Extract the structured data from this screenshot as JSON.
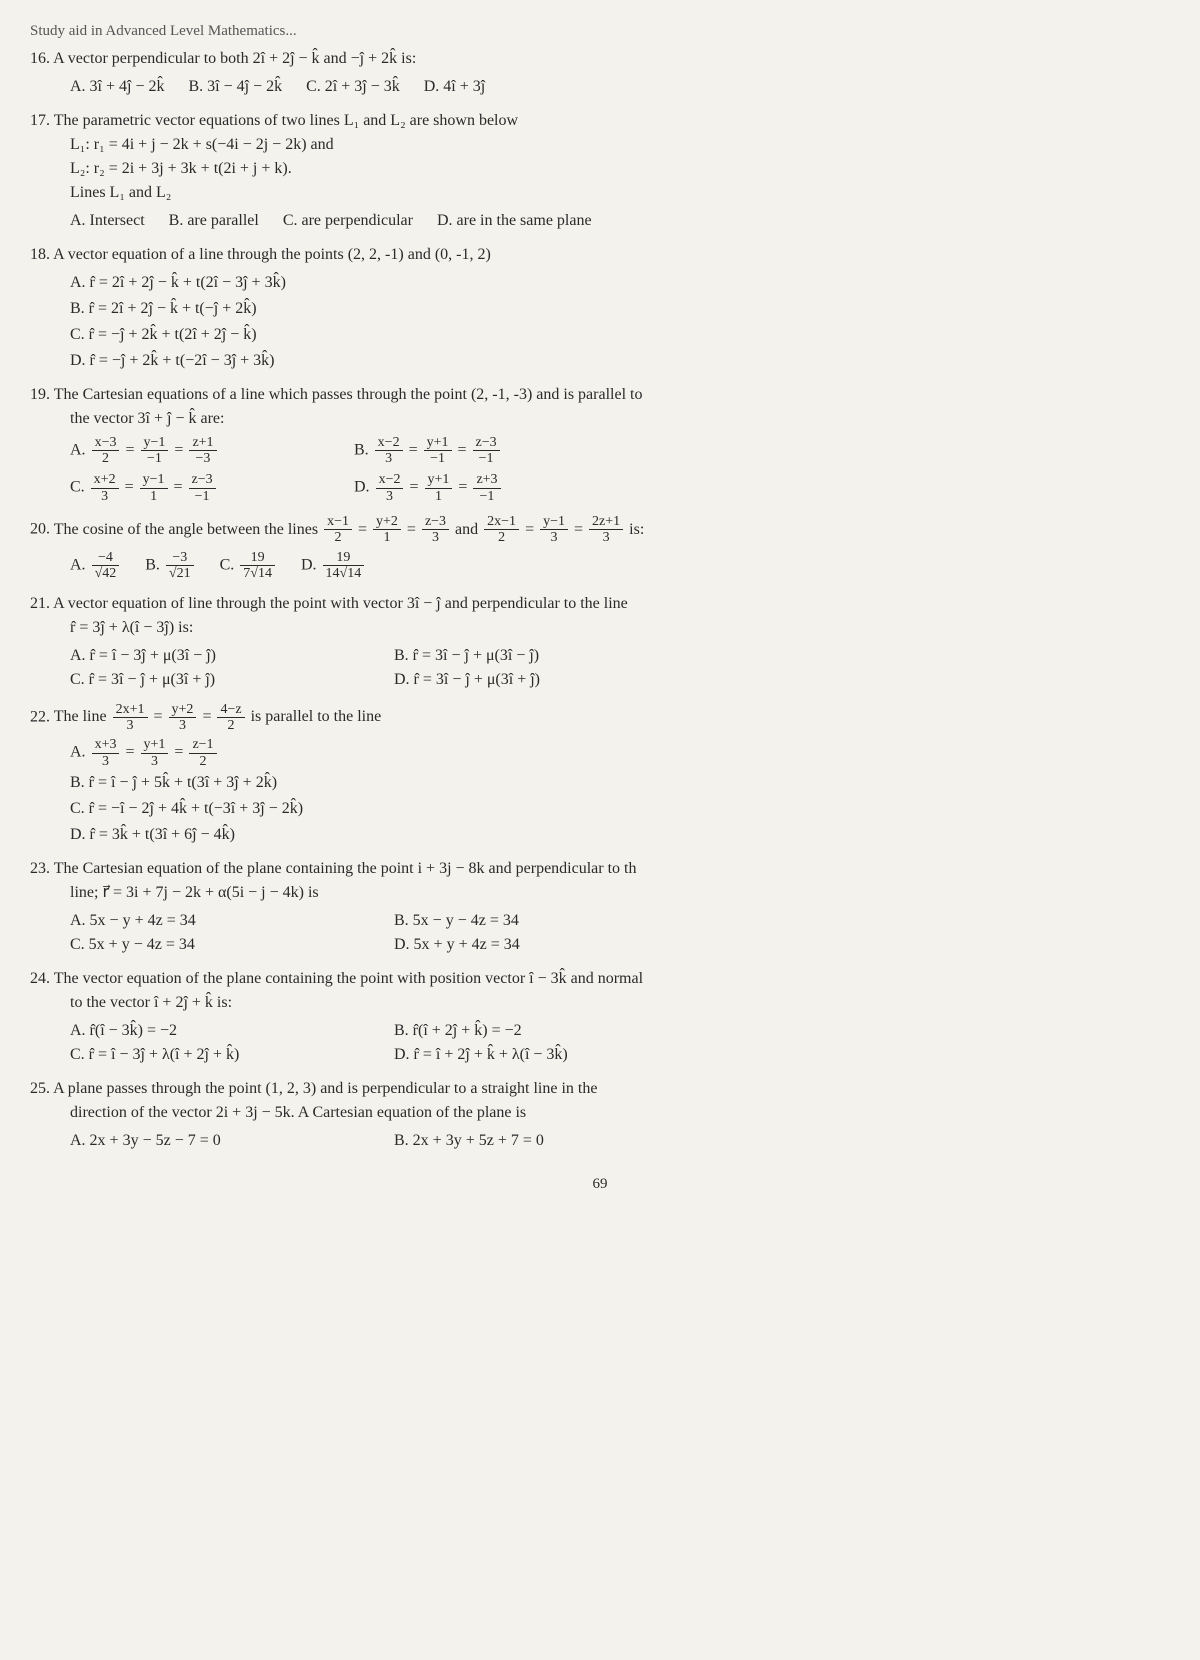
{
  "header_fragment": "Study aid in Advanced Level Mathematics...",
  "page_number": "69",
  "questions": [
    {
      "num": "16.",
      "text": "A vector perpendicular to both 2î + 2ĵ − k̂ and −ĵ + 2k̂ is:",
      "options": [
        {
          "label": "A.",
          "val": "3î + 4ĵ − 2k̂"
        },
        {
          "label": "B.",
          "val": "3î − 4ĵ − 2k̂"
        },
        {
          "label": "C.",
          "val": "2î + 3ĵ − 3k̂"
        },
        {
          "label": "D.",
          "val": "4î + 3ĵ"
        }
      ],
      "inline": true
    },
    {
      "num": "17.",
      "text": "The parametric vector equations of two lines L₁ and L₂ are shown below",
      "lines": [
        "L₁: r₁ = 4i + j − 2k + s(−4i − 2j − 2k) and",
        "L₂: r₂ = 2i + 3j + 3k + t(2i + j + k).",
        "Lines L₁ and L₂"
      ],
      "options": [
        {
          "label": "A.",
          "val": "Intersect"
        },
        {
          "label": "B.",
          "val": "are parallel"
        },
        {
          "label": "C.",
          "val": "are perpendicular"
        },
        {
          "label": "D.",
          "val": "are in the same plane"
        }
      ],
      "inline": true
    },
    {
      "num": "18.",
      "text": "A vector equation of a line through the points (2, 2, -1) and (0, -1, 2)",
      "options": [
        {
          "label": "A.",
          "val": "r̂ = 2î + 2ĵ − k̂ + t(2î − 3ĵ + 3k̂)"
        },
        {
          "label": "B.",
          "val": "r̂ = 2î + 2ĵ − k̂ + t(−ĵ + 2k̂)"
        },
        {
          "label": "C.",
          "val": "r̂ = −ĵ + 2k̂ + t(2î + 2ĵ − k̂)"
        },
        {
          "label": "D.",
          "val": "r̂ = −ĵ + 2k̂ + t(−2î − 3ĵ + 3k̂)"
        }
      ],
      "inline": false
    },
    {
      "num": "19.",
      "text": "The Cartesian equations of a line which passes through the point (2, -1, -3) and is parallel to",
      "lines": [
        "the vector 3î + ĵ − k̂ are:"
      ],
      "frac_options": [
        {
          "label": "A.",
          "parts": [
            [
              "x−3",
              "2"
            ],
            [
              "y−1",
              "−1"
            ],
            [
              "z+1",
              "−3"
            ]
          ]
        },
        {
          "label": "B.",
          "parts": [
            [
              "x−2",
              "3"
            ],
            [
              "y+1",
              "−1"
            ],
            [
              "z−3",
              "−1"
            ]
          ]
        },
        {
          "label": "C.",
          "parts": [
            [
              "x+2",
              "3"
            ],
            [
              "y−1",
              "1"
            ],
            [
              "z−3",
              "−1"
            ]
          ]
        },
        {
          "label": "D.",
          "parts": [
            [
              "x−2",
              "3"
            ],
            [
              "y+1",
              "1"
            ],
            [
              "z+3",
              "−1"
            ]
          ]
        }
      ]
    },
    {
      "num": "20.",
      "text_prefix": "The cosine of the angle between the lines ",
      "frac_inline_a": [
        [
          "x−1",
          "2"
        ],
        [
          "y+2",
          "1"
        ],
        [
          "z−3",
          "3"
        ]
      ],
      "mid_text": " and ",
      "frac_inline_b": [
        [
          "2x−1",
          "2"
        ],
        [
          "y−1",
          "3"
        ],
        [
          "2z+1",
          "3"
        ]
      ],
      "text_suffix": " is:",
      "frac_options_simple": [
        {
          "label": "A.",
          "num": "−4",
          "den": "√42"
        },
        {
          "label": "B.",
          "num": "−3",
          "den": "√21"
        },
        {
          "label": "C.",
          "num": "19",
          "den": "7√14"
        },
        {
          "label": "D.",
          "num": "19",
          "den": "14√14"
        }
      ]
    },
    {
      "num": "21.",
      "text": "A vector equation of line through the point with vector 3î − ĵ and perpendicular to the line",
      "lines": [
        "r̂ = 3ĵ + λ(î − 3ĵ) is:"
      ],
      "options": [
        {
          "label": "A.",
          "val": "r̂ = î − 3ĵ + μ(3î − ĵ)"
        },
        {
          "label": "B.",
          "val": "r̂ = 3î − ĵ + μ(3î − ĵ)"
        },
        {
          "label": "C.",
          "val": "r̂ = 3î − ĵ + μ(3î + ĵ)"
        },
        {
          "label": "D.",
          "val": "r̂ = 3î − ĵ + μ(3î + ĵ)"
        }
      ],
      "two_col": true
    },
    {
      "num": "22.",
      "text_prefix": "The line ",
      "frac_inline_a": [
        [
          "2x+1",
          "3"
        ],
        [
          "y+2",
          "3"
        ],
        [
          "4−z",
          "2"
        ]
      ],
      "text_suffix": " is parallel to the line",
      "mixed_options": [
        {
          "label": "A.",
          "frac": [
            [
              "x+3",
              "3"
            ],
            [
              "y+1",
              "3"
            ],
            [
              "z−1",
              "2"
            ]
          ]
        },
        {
          "label": "B.",
          "val": "r̂ = î − ĵ + 5k̂ + t(3î + 3ĵ + 2k̂)"
        },
        {
          "label": "C.",
          "val": "r̂ = −î − 2ĵ + 4k̂ + t(−3î + 3ĵ − 2k̂)"
        },
        {
          "label": "D.",
          "val": "r̂ = 3k̂ + t(3î + 6ĵ − 4k̂)"
        }
      ]
    },
    {
      "num": "23.",
      "text": "The Cartesian equation of the plane containing the point i + 3j − 8k and perpendicular to th",
      "lines": [
        "line;   r⃗ = 3i + 7j − 2k + α(5i − j − 4k) is"
      ],
      "options": [
        {
          "label": "A.",
          "val": "5x − y + 4z = 34"
        },
        {
          "label": "B.",
          "val": "5x − y − 4z = 34"
        },
        {
          "label": "C.",
          "val": "5x + y − 4z = 34"
        },
        {
          "label": "D.",
          "val": "5x + y + 4z = 34"
        }
      ],
      "two_col": true
    },
    {
      "num": "24.",
      "text": "The vector equation of the plane containing the point with position vector î − 3k̂ and normal",
      "lines": [
        "to the vector î + 2ĵ + k̂ is:"
      ],
      "options": [
        {
          "label": "A.",
          "val": "r̂(î − 3k̂) = −2"
        },
        {
          "label": "B.",
          "val": "r̂(î + 2ĵ + k̂) = −2"
        },
        {
          "label": "C.",
          "val": "r̂ = î − 3ĵ + λ(î + 2ĵ + k̂)"
        },
        {
          "label": "D.",
          "val": "r̂ = î + 2ĵ + k̂ + λ(î − 3k̂)"
        }
      ],
      "two_col": true
    },
    {
      "num": "25.",
      "text": "A plane passes through the point (1, 2, 3) and is perpendicular to a straight line in the",
      "lines": [
        "direction of the vector 2i + 3j − 5k. A Cartesian equation of the plane is"
      ],
      "options": [
        {
          "label": "A.",
          "val": "2x + 3y − 5z − 7 = 0"
        },
        {
          "label": "B.",
          "val": "2x + 3y + 5z + 7 = 0"
        }
      ],
      "two_col": true
    }
  ]
}
